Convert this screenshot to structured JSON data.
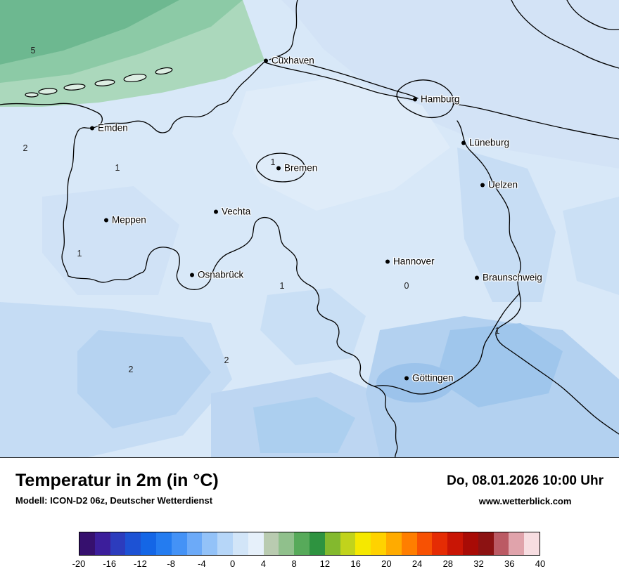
{
  "map": {
    "cities": [
      {
        "name": "Cuxhaven"
      },
      {
        "name": "Hamburg"
      },
      {
        "name": "Emden"
      },
      {
        "name": "Lüneburg"
      },
      {
        "name": "Bremen"
      },
      {
        "name": "Uelzen"
      },
      {
        "name": "Meppen"
      },
      {
        "name": "Vechta"
      },
      {
        "name": "Hannover"
      },
      {
        "name": "Osnabrück"
      },
      {
        "name": "Braunschweig"
      },
      {
        "name": "Göttingen"
      }
    ],
    "temperatures": [
      {
        "value": "5"
      },
      {
        "value": "2"
      },
      {
        "value": "1"
      },
      {
        "value": "1"
      },
      {
        "value": "1"
      },
      {
        "value": "1"
      },
      {
        "value": "0"
      },
      {
        "value": "2"
      },
      {
        "value": "2"
      },
      {
        "value": "1"
      }
    ]
  },
  "footer": {
    "title": "Temperatur in 2m (in °C)",
    "datetime": "Do, 08.01.2026 10:00 Uhr",
    "model": "Modell: ICON-D2 06z, Deutscher Wetterdienst",
    "website": "www.wetterblick.com"
  },
  "colorbar": {
    "ticks": [
      "-20",
      "-16",
      "-12",
      "-8",
      "-4",
      "0",
      "4",
      "8",
      "12",
      "16",
      "20",
      "24",
      "28",
      "32",
      "36",
      "40"
    ],
    "colors": [
      "#36106e",
      "#3c1e9b",
      "#2c3cbd",
      "#1d52d4",
      "#1466e6",
      "#247cf0",
      "#4492f6",
      "#6caaf8",
      "#93c2f8",
      "#b6d6f8",
      "#d2e5f8",
      "#e6f0fa",
      "#b9cbb0",
      "#90c08c",
      "#57aa5a",
      "#2e9340",
      "#83b92e",
      "#c1d31c",
      "#f5e800",
      "#ffd200",
      "#ffab00",
      "#ff7e00",
      "#f75103",
      "#e52c04",
      "#c91505",
      "#a80b06",
      "#8c1212",
      "#bb5a64",
      "#e0a3ab",
      "#f7dde1"
    ]
  }
}
